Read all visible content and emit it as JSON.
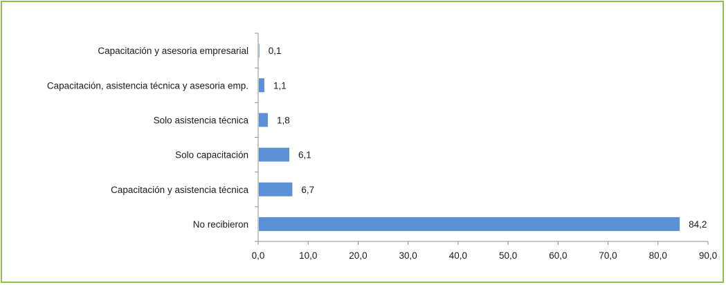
{
  "chart_data": {
    "type": "bar",
    "orientation": "horizontal",
    "categories": [
      "Capacitación y asesoria empresarial",
      "Capacitación, asistencia técnica y asesoria emp.",
      "Solo asistencia técnica",
      "Solo capacitación",
      "Capacitación y asistencia técnica",
      "No recibieron"
    ],
    "values": [
      0.1,
      1.1,
      1.8,
      6.1,
      6.7,
      84.2
    ],
    "value_labels": [
      "0,1",
      "1,1",
      "1,8",
      "6,1",
      "6,7",
      "84,2"
    ],
    "x_ticks": [
      "0,0",
      "10,0",
      "20,0",
      "30,0",
      "40,0",
      "50,0",
      "60,0",
      "70,0",
      "80,0",
      "90,0"
    ],
    "xlim": [
      0,
      90
    ],
    "title": "",
    "xlabel": "",
    "ylabel": "",
    "grid": false,
    "bar_color": "#5b8fd6",
    "frame_color": "#8dc04f"
  }
}
